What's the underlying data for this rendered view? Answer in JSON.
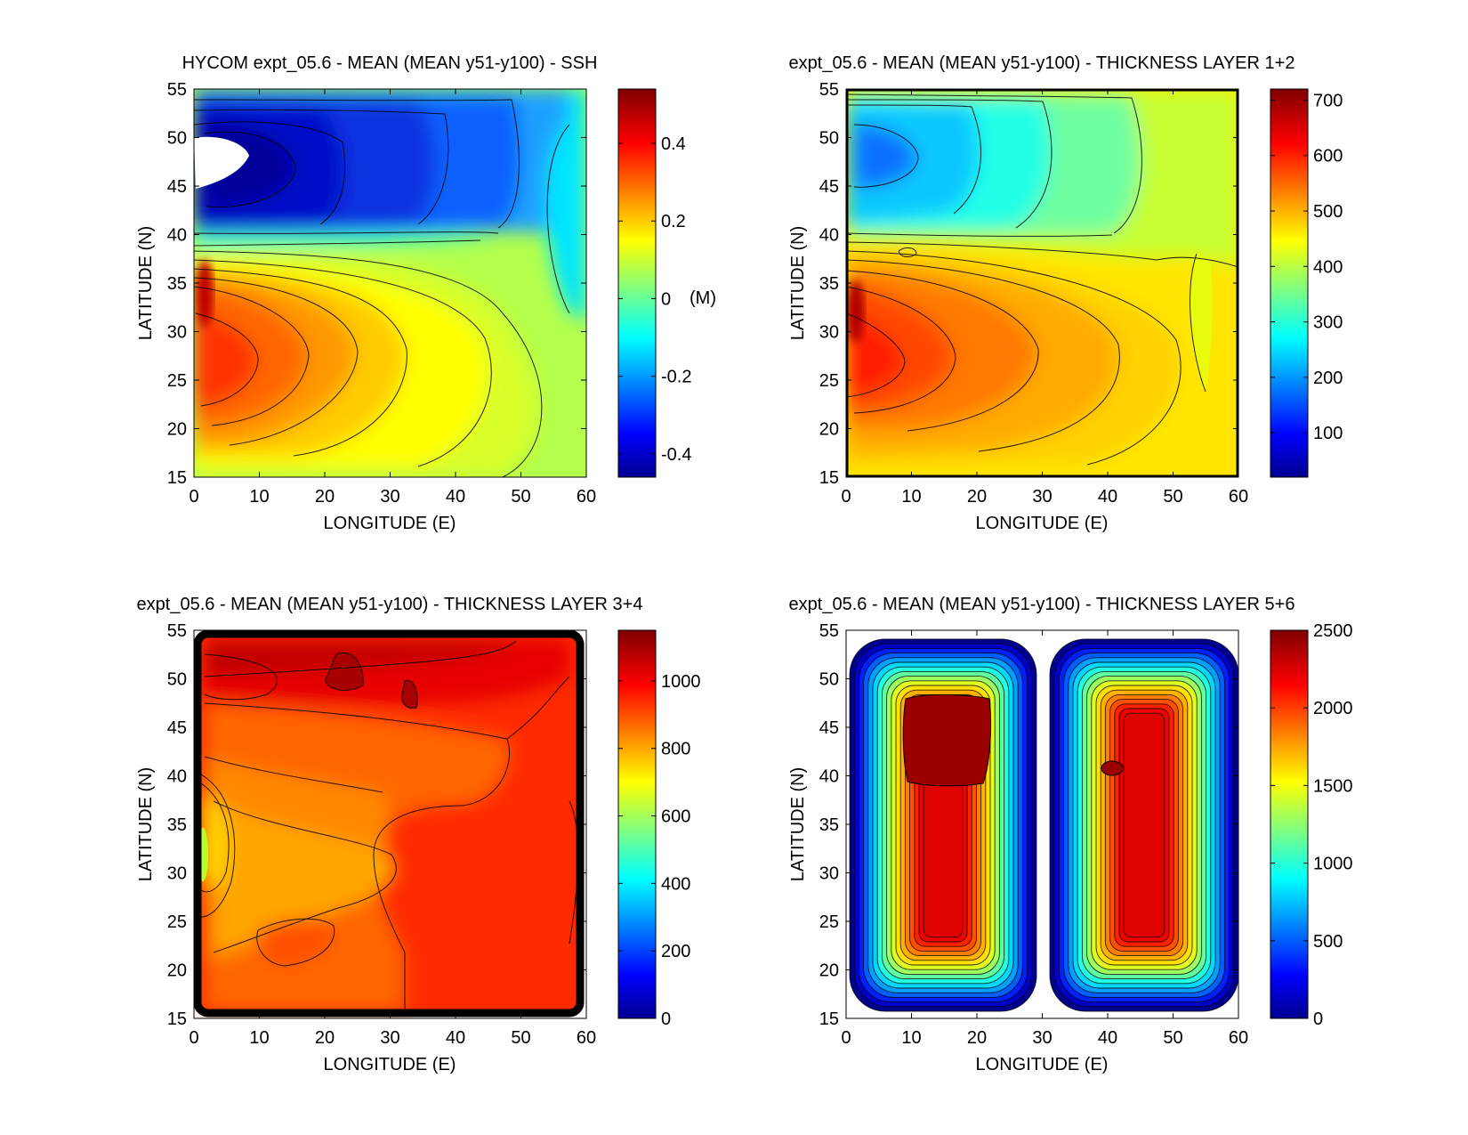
{
  "chart_data": [
    {
      "type": "heatmap",
      "title": "HYCOM expt_05.6 - MEAN (MEAN y51-y100) - SSH",
      "xlabel": "LONGITUDE (E)",
      "ylabel": "LATITUDE (N)",
      "xlim": [
        0,
        60
      ],
      "ylim": [
        15,
        55
      ],
      "xticks": [
        0,
        10,
        20,
        30,
        40,
        50,
        60
      ],
      "yticks": [
        15,
        20,
        25,
        30,
        35,
        40,
        45,
        50,
        55
      ],
      "colorbar": {
        "range": [
          -0.46,
          0.54
        ],
        "ticks": [
          "0.4",
          "0.2",
          "0",
          "-0.2",
          "-0.4"
        ],
        "tick_values": [
          0.4,
          0.2,
          0,
          -0.2,
          -0.4
        ],
        "unit_label": "(M)"
      },
      "field": "double-gyre sea surface height: subpolar gyre low (about -0.45 M) centred near 47N along the western boundary, subtropical gyre high (about +0.5 M) near 27N, 5E; white land mask near 0-5E, 45-49N"
    },
    {
      "type": "heatmap",
      "title": "expt_05.6 - MEAN (MEAN y51-y100) - THICKNESS LAYER 1+2",
      "xlabel": "LONGITUDE (E)",
      "ylabel": "LATITUDE (N)",
      "xlim": [
        0,
        60
      ],
      "ylim": [
        15,
        55
      ],
      "xticks": [
        0,
        10,
        20,
        30,
        40,
        50,
        60
      ],
      "yticks": [
        15,
        20,
        25,
        30,
        35,
        40,
        45,
        50,
        55
      ],
      "colorbar": {
        "range": [
          20,
          720
        ],
        "ticks": [
          "700",
          "600",
          "500",
          "400",
          "300",
          "200",
          "100"
        ],
        "tick_values": [
          700,
          600,
          500,
          400,
          300,
          200,
          100
        ]
      },
      "field": "thin layers (about 200) in the subpolar gyre near 47N west; thick (about 650) in the subtropical gyre near 27N west; about 420 elsewhere"
    },
    {
      "type": "heatmap",
      "title": "expt_05.6 - MEAN (MEAN y51-y100) - THICKNESS LAYER 3+4",
      "xlabel": "LONGITUDE (E)",
      "ylabel": "LATITUDE (N)",
      "xlim": [
        0,
        60
      ],
      "ylim": [
        15,
        55
      ],
      "xticks": [
        0,
        10,
        20,
        30,
        40,
        50,
        60
      ],
      "yticks": [
        15,
        20,
        25,
        30,
        35,
        40,
        45,
        50,
        55
      ],
      "colorbar": {
        "range": [
          0,
          1150
        ],
        "ticks": [
          "1000",
          "800",
          "600",
          "400",
          "200",
          "0"
        ],
        "tick_values": [
          1000,
          800,
          600,
          400,
          200,
          0
        ]
      },
      "field": "high (about 1100) in the north, about 950 in the east, about 880 in the southwest interior, about 600 near the western boundary at 30N; sharp drop to 0 at the basin walls"
    },
    {
      "type": "heatmap",
      "title": "expt_05.6 - MEAN (MEAN y51-y100) - THICKNESS LAYER 5+6",
      "xlabel": "LONGITUDE (E)",
      "ylabel": "LATITUDE (N)",
      "xlim": [
        0,
        60
      ],
      "ylim": [
        15,
        55
      ],
      "xticks": [
        0,
        10,
        20,
        30,
        40,
        50,
        60
      ],
      "yticks": [
        15,
        20,
        25,
        30,
        35,
        40,
        45,
        50,
        55
      ],
      "colorbar": {
        "range": [
          0,
          2500
        ],
        "ticks": [
          "2500",
          "2000",
          "1500",
          "1000",
          "500",
          "0"
        ],
        "tick_values": [
          2500,
          2000,
          1500,
          1000,
          500,
          0
        ]
      },
      "field": "two rounded basins split at 30E, each peaking near 2300-2400, falling to 0 at the walls and along the central ridge"
    }
  ]
}
